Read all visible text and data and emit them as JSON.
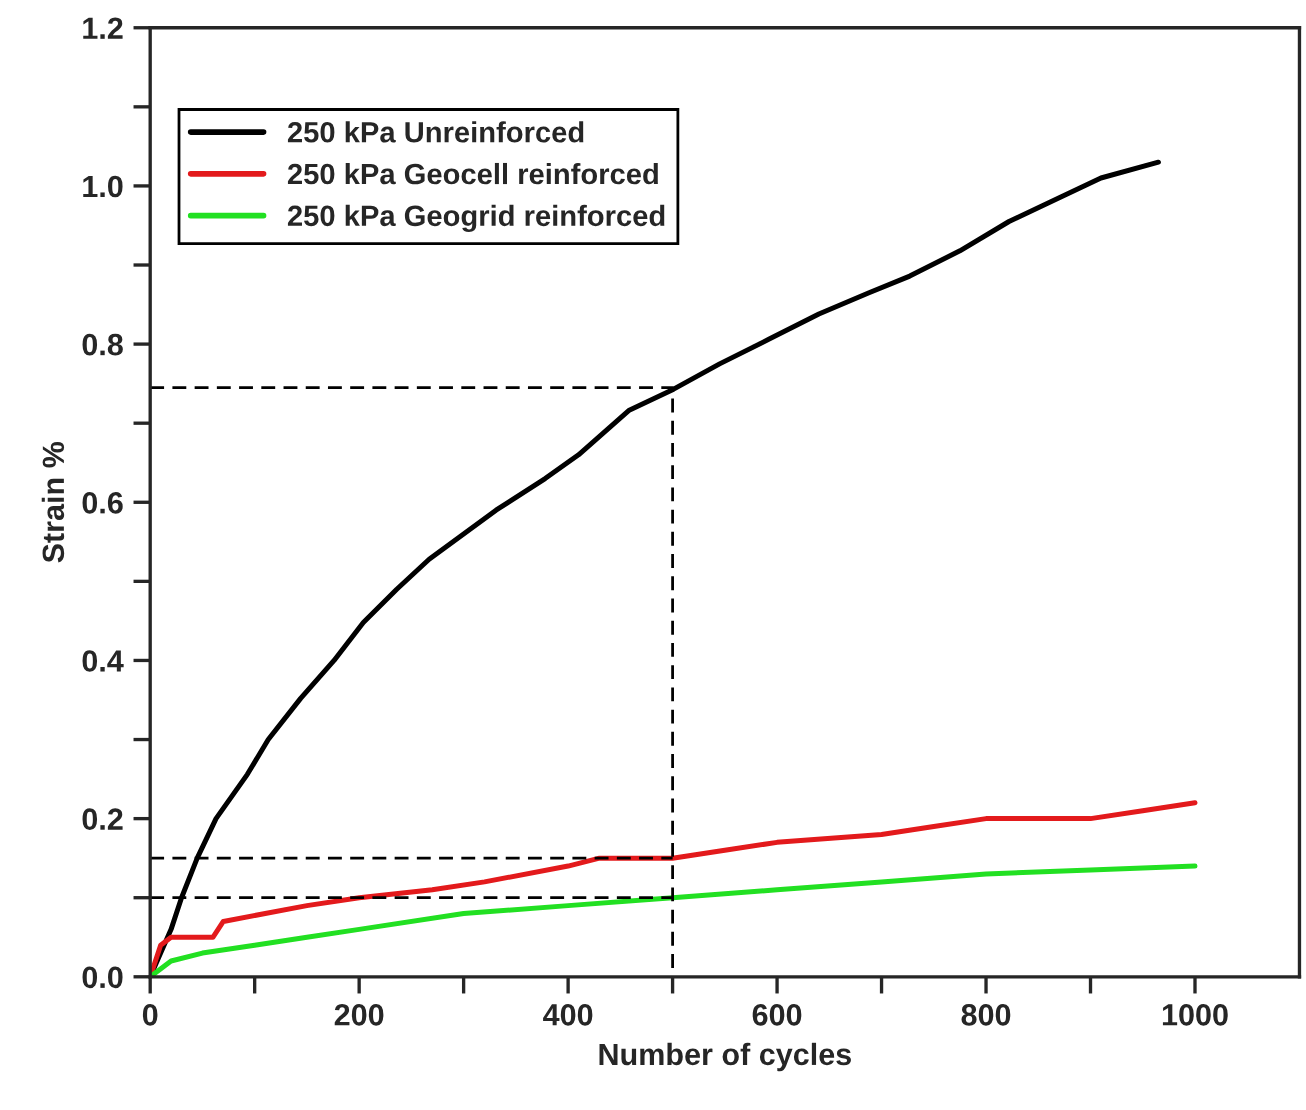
{
  "chart_data": {
    "type": "line",
    "xlabel": "Number of cycles",
    "ylabel": "Strain %",
    "xlim": [
      0,
      1100
    ],
    "ylim": [
      0,
      1.2
    ],
    "xticks": [
      0,
      {
        "value": 100,
        "label": null
      },
      200,
      {
        "value": 300,
        "label": null
      },
      400,
      {
        "value": 500,
        "label": null
      },
      600,
      {
        "value": 700,
        "label": null
      },
      800,
      {
        "value": 900,
        "label": null
      },
      1000
    ],
    "yticks": [
      {
        "value": 0,
        "label": "0.0"
      },
      {
        "value": 0.1,
        "label": null
      },
      0.2,
      {
        "value": 0.3,
        "label": null
      },
      0.4,
      {
        "value": 0.5,
        "label": null
      },
      0.6,
      {
        "value": 0.7,
        "label": null
      },
      0.8,
      {
        "value": 0.9,
        "label": null
      },
      {
        "value": 1.0,
        "label": "1.0"
      },
      {
        "value": 1.1,
        "label": null
      },
      1.2
    ],
    "grid": false,
    "legend": "top left",
    "line_style": "solid",
    "series": [
      {
        "name": "250 kPa Unreinforced",
        "color": "#000000",
        "x": [
          0,
          10,
          20,
          30,
          45,
          63,
          93,
          113,
          144,
          176,
          204,
          236,
          267,
          331,
          378,
          410,
          458,
          501,
          545,
          592,
          640,
          688,
          727,
          775,
          822,
          862,
          910,
          965
        ],
        "values": [
          0,
          0.03,
          0.06,
          0.1,
          0.15,
          0.2,
          0.256,
          0.3,
          0.352,
          0.4,
          0.448,
          0.49,
          0.528,
          0.59,
          0.63,
          0.66,
          0.716,
          0.743,
          0.775,
          0.806,
          0.838,
          0.865,
          0.886,
          0.918,
          0.955,
          0.98,
          1.01,
          1.03
        ]
      },
      {
        "name": "250 kPa Geocell reinforced",
        "color": "#e31a1c",
        "x": [
          0,
          10,
          20,
          60,
          70,
          150,
          200,
          270,
          320,
          400,
          430,
          500,
          550,
          600,
          700,
          750,
          800,
          900,
          950,
          1000
        ],
        "values": [
          0,
          0.04,
          0.05,
          0.05,
          0.07,
          0.09,
          0.1,
          0.11,
          0.12,
          0.14,
          0.15,
          0.15,
          0.16,
          0.17,
          0.18,
          0.19,
          0.2,
          0.2,
          0.21,
          0.22
        ]
      },
      {
        "name": "250 kPa Geogrid reinforced",
        "color": "#22e022",
        "x": [
          0,
          20,
          50,
          100,
          150,
          200,
          300,
          400,
          500,
          600,
          700,
          800,
          900,
          1000
        ],
        "values": [
          0,
          0.02,
          0.03,
          0.04,
          0.05,
          0.06,
          0.08,
          0.09,
          0.1,
          0.11,
          0.12,
          0.13,
          0.135,
          0.14
        ]
      },
      {
        "color": "#000000",
        "line_style": "dashed",
        "x": [
          0,
          500,
          500
        ],
        "values": [
          0.745,
          0.745,
          0
        ]
      },
      {
        "color": "#000000",
        "line_style": "dashed",
        "x": [
          0,
          500
        ],
        "values": [
          0.15,
          0.15
        ]
      },
      {
        "color": "#000000",
        "line_style": "dashed",
        "x": [
          0,
          500
        ],
        "values": [
          0.1,
          0.1
        ]
      }
    ]
  }
}
